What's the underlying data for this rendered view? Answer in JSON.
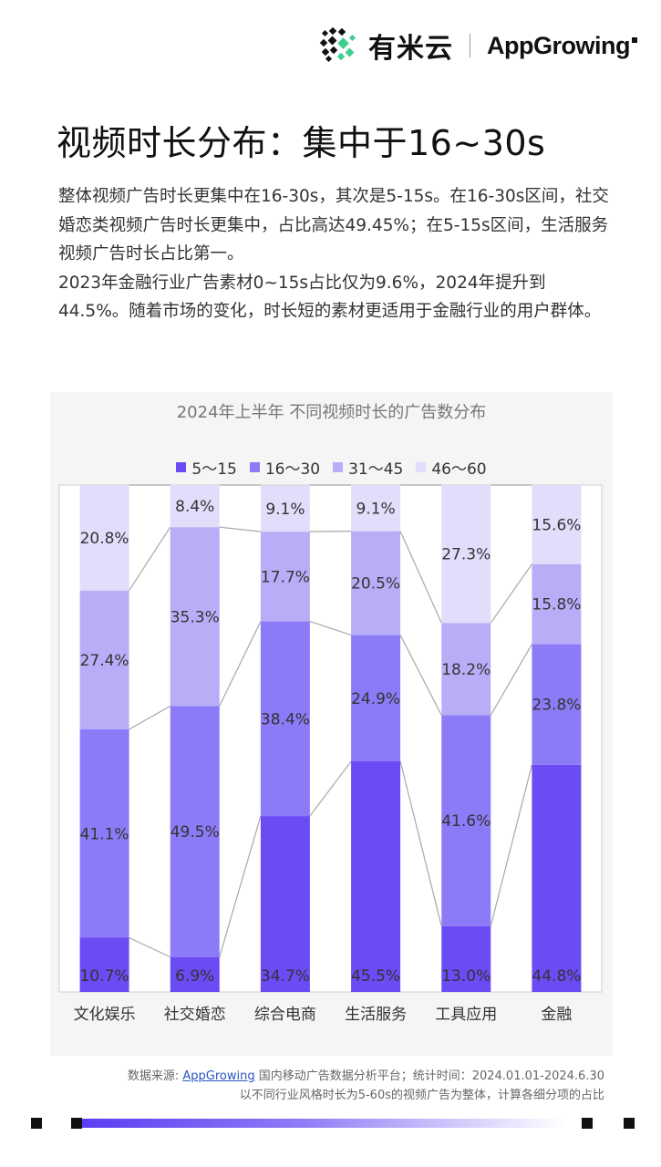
{
  "brand": {
    "cn_name": "有米云",
    "en_name": "AppGrowing"
  },
  "title": "视频时长分布：集中于16~30s",
  "intro": [
    "整体视频广告时长更集中在16-30s，其次是5-15s。在16-30s区间，社交婚恋类视频广告时长更集中，占比高达49.45%；在5-15s区间，生活服务视频广告时长占比第一。",
    "2023年金融行业广告素材0~15s占比仅为9.6%，2024年提升到44.5%。随着市场的变化，时长短的素材更适用于金融行业的用户群体。"
  ],
  "colors": {
    "s1": "#6b4bf4",
    "s2": "#8c7bf6",
    "s3": "#b9adf8",
    "s4": "#e2ddfa",
    "link": "#2a55c4"
  },
  "chart_data": {
    "type": "bar",
    "stacked": true,
    "normalized": true,
    "title": "2024年上半年 不同视频时长的广告数分布",
    "categories": [
      "文化娱乐",
      "社交婚恋",
      "综合电商",
      "生活服务",
      "工具应用",
      "金融"
    ],
    "series": [
      {
        "name": "5～15",
        "values": [
          10.7,
          6.9,
          34.7,
          45.5,
          13.0,
          44.8
        ]
      },
      {
        "name": "16～30",
        "values": [
          41.1,
          49.5,
          38.4,
          24.9,
          41.6,
          23.8
        ]
      },
      {
        "name": "31～45",
        "values": [
          27.4,
          35.3,
          17.7,
          20.5,
          18.2,
          15.8
        ]
      },
      {
        "name": "46～60",
        "values": [
          20.8,
          8.4,
          9.1,
          9.1,
          27.3,
          15.6
        ]
      }
    ],
    "labels": [
      [
        "10.7%",
        "6.9%",
        "34.7%",
        "45.5%",
        "13.0%",
        "44.8%"
      ],
      [
        "41.1%",
        "49.5%",
        "38.4%",
        "24.9%",
        "41.6%",
        "23.8%"
      ],
      [
        "27.4%",
        "35.3%",
        "17.7%",
        "20.5%",
        "18.2%",
        "15.8%"
      ],
      [
        "20.8%",
        "8.4%",
        "9.1%",
        "9.1%",
        "27.3%",
        "15.6%"
      ]
    ],
    "ylim": [
      0,
      100
    ],
    "legend": "top-center",
    "connector_lines": true
  },
  "footer": {
    "source_prefix": "数据来源: ",
    "source_link": "AppGrowing",
    "source_suffix": " 国内移动广告数据分析平台；统计时间：2024.01.01-2024.6.30",
    "note": "以不同行业风格时长为5-60s的视频广告为整体，计算各细分项的占比"
  }
}
